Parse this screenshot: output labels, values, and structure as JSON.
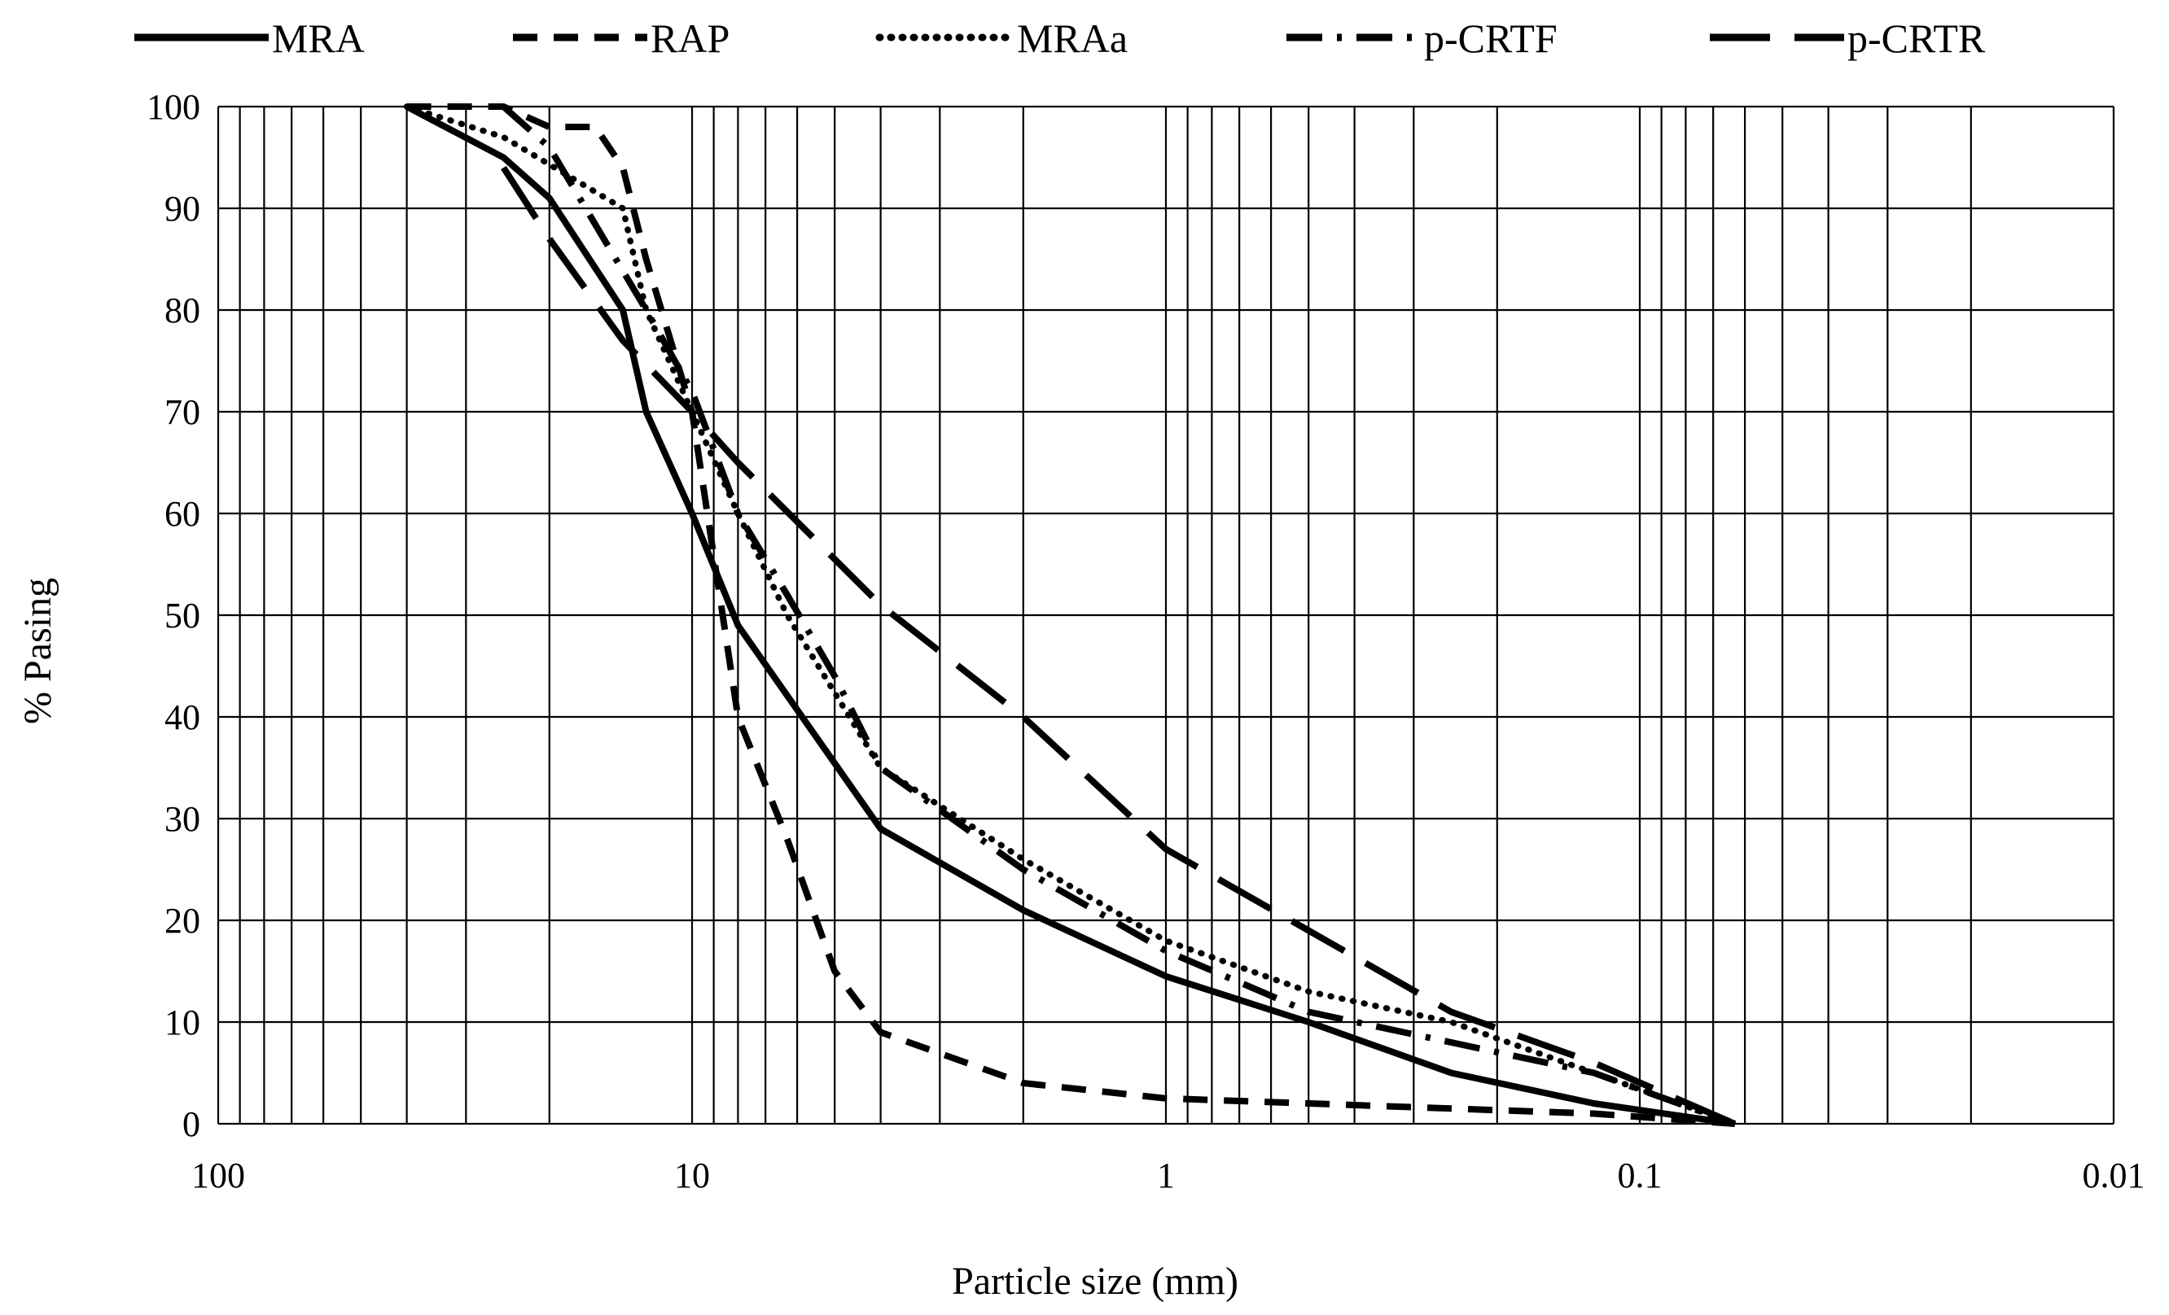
{
  "chart_data": {
    "type": "line",
    "title": "",
    "xlabel": "Particle size (mm)",
    "ylabel": "% Pasing",
    "xscale": "log",
    "xreversed": true,
    "xlim": [
      100,
      0.01
    ],
    "ylim": [
      0,
      100
    ],
    "grid": true,
    "legend_position": "top",
    "x_ticks": [
      {
        "value": 100,
        "label": "100"
      },
      {
        "value": 10,
        "label": "10"
      },
      {
        "value": 1,
        "label": "1"
      },
      {
        "value": 0.1,
        "label": "0.1"
      },
      {
        "value": 0.01,
        "label": "0.01"
      }
    ],
    "y_ticks": [
      {
        "value": 0,
        "label": "0"
      },
      {
        "value": 10,
        "label": "10"
      },
      {
        "value": 20,
        "label": "20"
      },
      {
        "value": 30,
        "label": "30"
      },
      {
        "value": 40,
        "label": "40"
      },
      {
        "value": 50,
        "label": "50"
      },
      {
        "value": 60,
        "label": "60"
      },
      {
        "value": 70,
        "label": "70"
      },
      {
        "value": 80,
        "label": "80"
      },
      {
        "value": 90,
        "label": "90"
      },
      {
        "value": 100,
        "label": "100"
      }
    ],
    "series": [
      {
        "name": "MRA",
        "style": "solid",
        "x": [
          40,
          25,
          20,
          14,
          12.5,
          10,
          8,
          4,
          2,
          1,
          0.5,
          0.25,
          0.125,
          0.063
        ],
        "y": [
          100,
          95,
          91,
          80,
          70,
          60,
          49,
          29,
          21,
          14.5,
          10,
          5,
          2,
          0
        ]
      },
      {
        "name": "RAP",
        "style": "dashed",
        "x": [
          40,
          25,
          20,
          16,
          14,
          12.5,
          10,
          8,
          6.3,
          5,
          4,
          2,
          1,
          0.5,
          0.25,
          0.125,
          0.063
        ],
        "y": [
          100,
          100,
          98,
          98,
          94,
          85,
          70,
          40,
          28,
          15,
          9,
          4,
          2.5,
          2,
          1.5,
          1,
          0
        ]
      },
      {
        "name": "MRAa",
        "style": "dotted",
        "x": [
          40,
          25,
          14,
          12.5,
          10,
          8,
          6.3,
          4,
          2,
          1,
          0.5,
          0.25,
          0.125,
          0.063
        ],
        "y": [
          100,
          97,
          90,
          80,
          70,
          60,
          50,
          35,
          26,
          18,
          13,
          10,
          5,
          0
        ]
      },
      {
        "name": "p-CRTF",
        "style": "dash-dot",
        "x": [
          25,
          20,
          12.5,
          10,
          8,
          6.3,
          5,
          4,
          2,
          1,
          0.5,
          0.25,
          0.125,
          0.063
        ],
        "y": [
          100,
          96,
          80,
          72,
          60,
          52,
          44,
          35,
          25,
          17,
          11,
          8,
          5,
          0
        ]
      },
      {
        "name": "p-CRTR",
        "style": "long-dash",
        "x": [
          25,
          20,
          14,
          10,
          8,
          4,
          2,
          1,
          0.5,
          0.25,
          0.125,
          0.063
        ],
        "y": [
          94,
          87,
          77,
          70,
          65,
          51,
          40,
          27,
          19,
          11,
          6,
          0
        ]
      }
    ]
  }
}
